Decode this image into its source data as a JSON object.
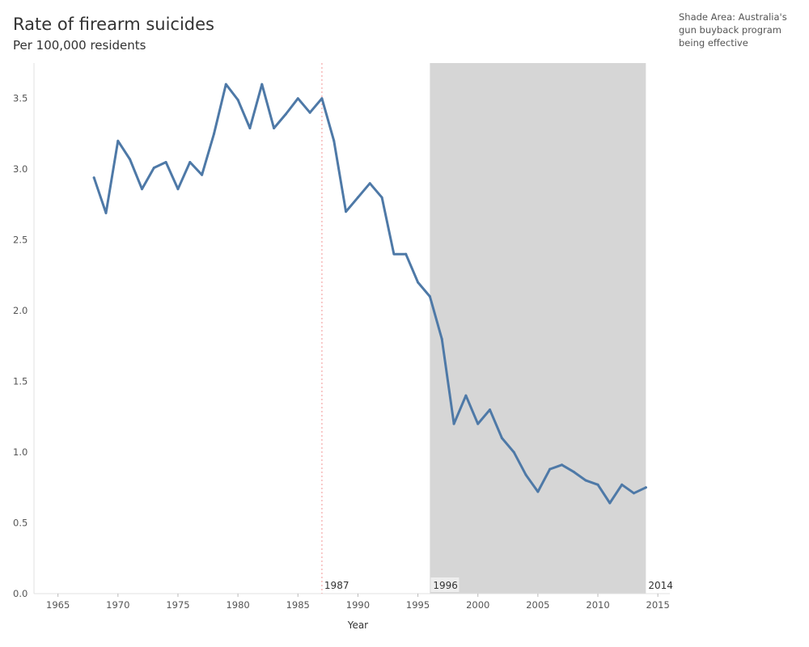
{
  "chart_data": {
    "type": "line",
    "title": "Rate of firearm suicides",
    "subtitle": "Per 100,000 residents",
    "xlabel": "Year",
    "ylabel": "",
    "xlim": [
      1963,
      2016
    ],
    "ylim": [
      0,
      3.75
    ],
    "x_ticks": [
      1965,
      1970,
      1975,
      1980,
      1985,
      1990,
      1995,
      2000,
      2005,
      2010,
      2015
    ],
    "y_ticks": [
      0.0,
      0.5,
      1.0,
      1.5,
      2.0,
      2.5,
      3.0,
      3.5
    ],
    "grid": false,
    "series": [
      {
        "name": "",
        "color": "#4e79a7",
        "x": [
          1968,
          1969,
          1970,
          1971,
          1972,
          1973,
          1974,
          1975,
          1976,
          1977,
          1978,
          1979,
          1980,
          1981,
          1982,
          1983,
          1984,
          1985,
          1986,
          1987,
          1988,
          1989,
          1990,
          1991,
          1992,
          1993,
          1994,
          1995,
          1996,
          1997,
          1998,
          1999,
          2000,
          2001,
          2002,
          2003,
          2004,
          2005,
          2006,
          2007,
          2008,
          2009,
          2010,
          2011,
          2012,
          2013,
          2014
        ],
        "values": [
          2.94,
          2.69,
          3.2,
          3.07,
          2.86,
          3.01,
          3.05,
          2.86,
          3.05,
          2.96,
          3.25,
          3.6,
          3.49,
          3.29,
          3.6,
          3.29,
          3.39,
          3.5,
          3.4,
          3.5,
          3.2,
          2.7,
          2.8,
          2.9,
          2.8,
          2.4,
          2.4,
          2.2,
          2.1,
          1.8,
          1.2,
          1.4,
          1.2,
          1.3,
          1.1,
          1.0,
          0.84,
          0.72,
          0.88,
          0.91,
          0.86,
          0.8,
          0.77,
          0.64,
          0.77,
          0.71,
          0.75
        ]
      }
    ],
    "reference_line": {
      "x": 1987,
      "label": "1987",
      "color": "#f4a6a6"
    },
    "shaded_band": {
      "from": 1996,
      "to": 2014,
      "label_start": "1996",
      "label_end": "2014",
      "color": "#d6d6d6"
    },
    "annotation": "Shade Area: Australia's gun buyback program being effective"
  }
}
